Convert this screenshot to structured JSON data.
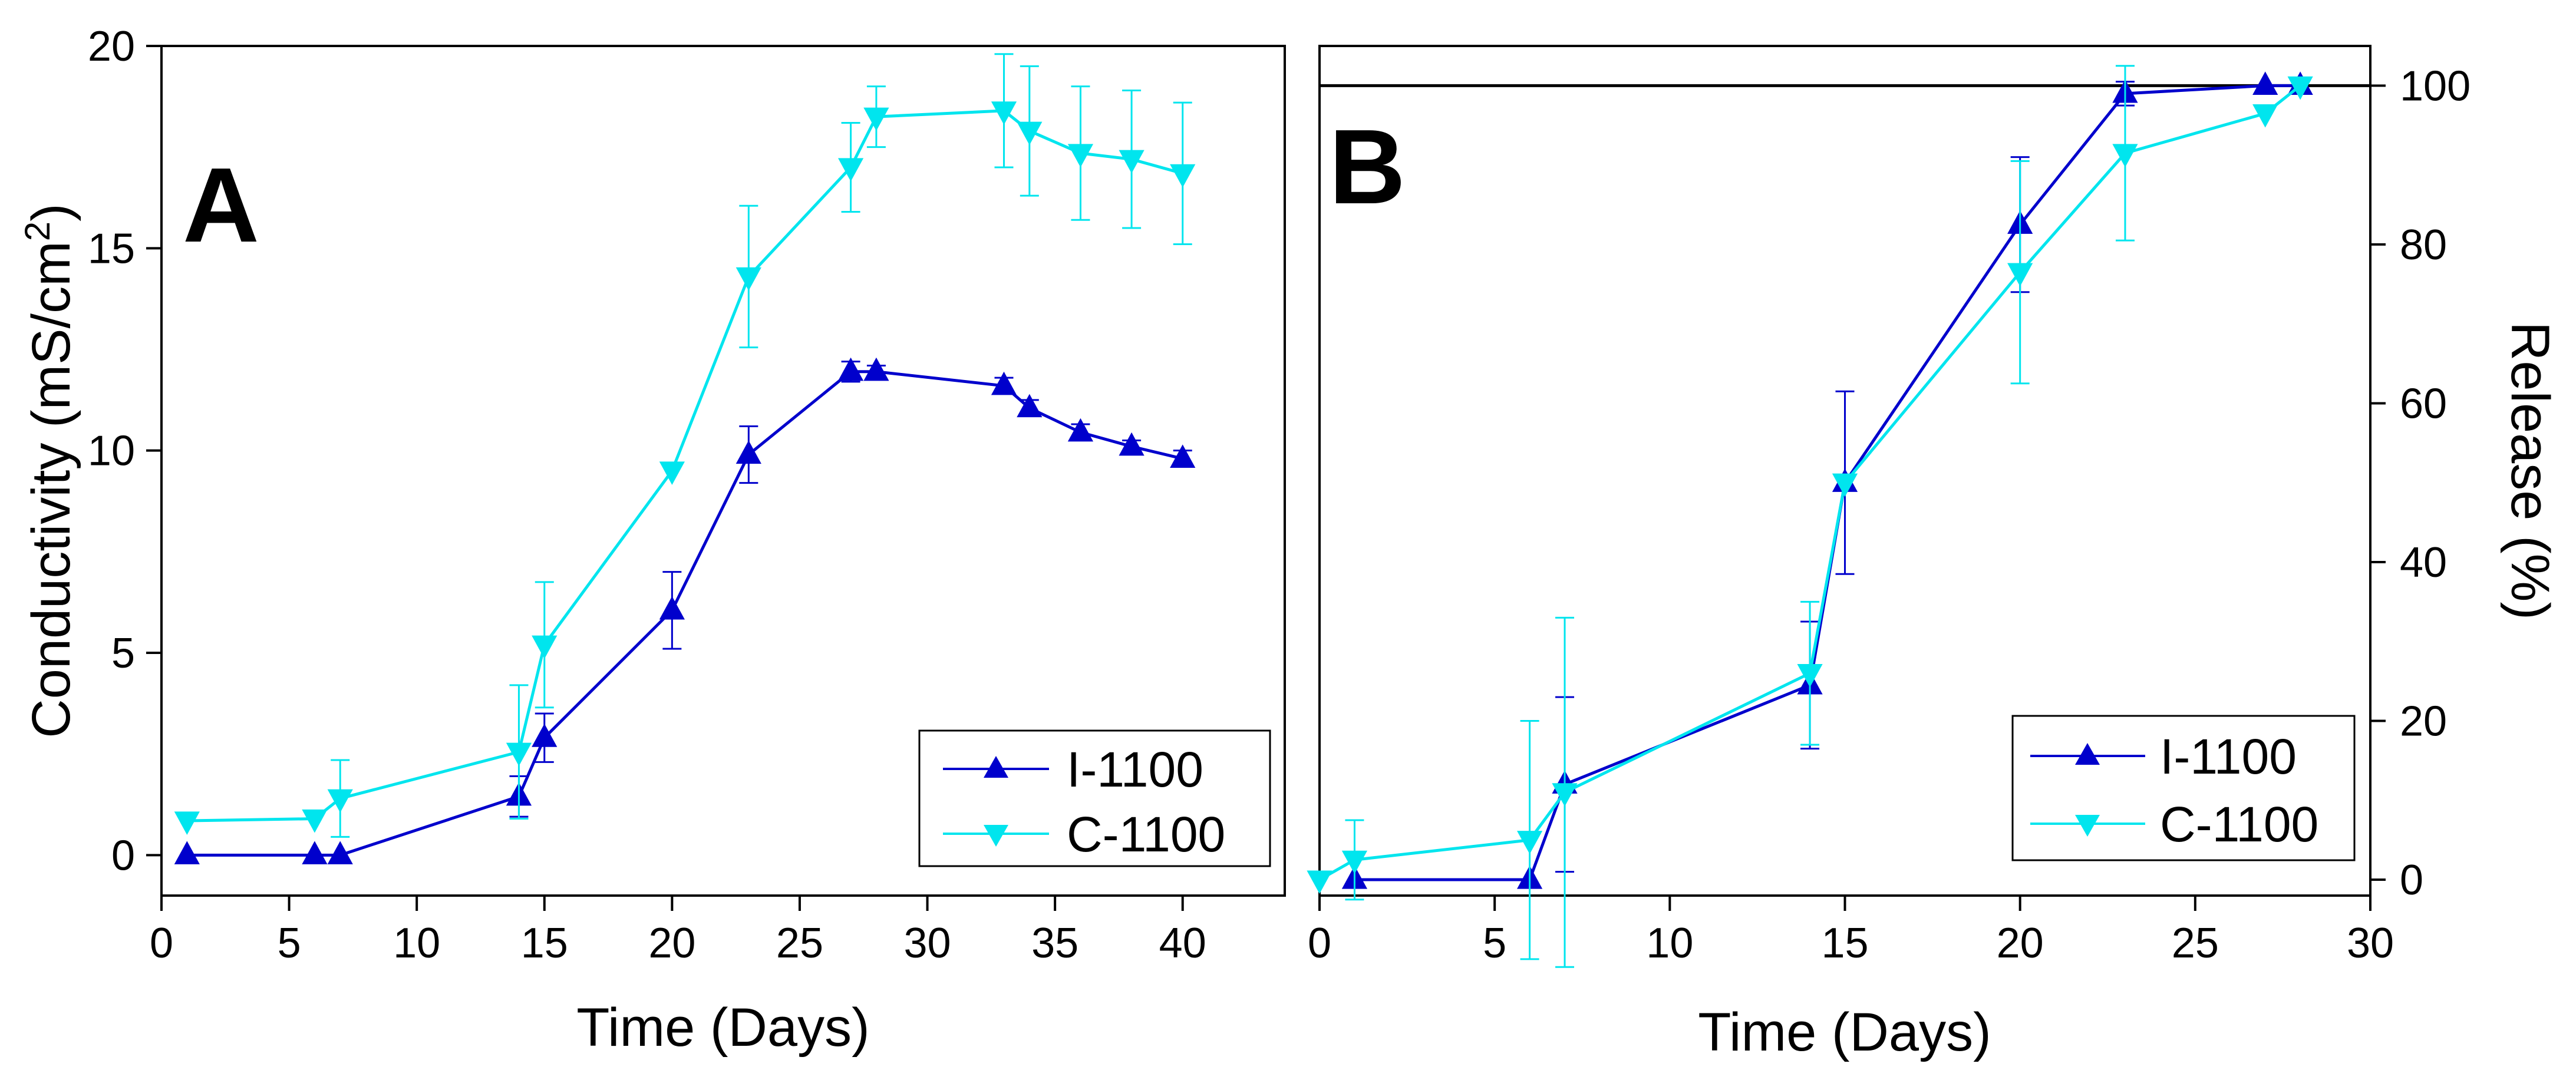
{
  "chart_data": [
    {
      "panel_label": "A",
      "type": "line",
      "xlabel": "Time (Days)",
      "ylabel_main": "Conductivity (mS/cm",
      "ylabel_sup": "2",
      "ylabel_end": ")",
      "xlim": [
        0,
        44
      ],
      "ylim": [
        -1,
        20
      ],
      "xticks": [
        0,
        5,
        10,
        15,
        20,
        25,
        30,
        35,
        40
      ],
      "yticks": [
        0,
        5,
        10,
        15,
        20
      ],
      "legend_position": "bottom-right",
      "series": [
        {
          "name": "I-1100",
          "color": "#0000cc",
          "marker": "triangle-up",
          "x": [
            1,
            6,
            7,
            14,
            15,
            20,
            23,
            27,
            28,
            33,
            34,
            36,
            38,
            40
          ],
          "y": [
            0,
            0,
            0,
            1.45,
            2.9,
            6.05,
            9.9,
            11.95,
            11.95,
            11.6,
            11.05,
            10.45,
            10.1,
            9.8
          ],
          "err": [
            0,
            0,
            0,
            0.5,
            0.6,
            0.95,
            0.7,
            0.25,
            0.15,
            0.2,
            0.2,
            0.2,
            0.15,
            0.2
          ]
        },
        {
          "name": "C-1100",
          "color": "#00e5ee",
          "marker": "triangle-down",
          "x": [
            1,
            6,
            7,
            14,
            15,
            20,
            23,
            27,
            28,
            33,
            34,
            36,
            38,
            40
          ],
          "y": [
            0.85,
            0.9,
            1.4,
            2.55,
            5.2,
            9.5,
            14.3,
            17,
            18.25,
            18.4,
            17.9,
            17.35,
            17.2,
            16.85
          ],
          "err": [
            0,
            0,
            0.95,
            1.65,
            1.55,
            0,
            1.75,
            1.1,
            0.75,
            1.4,
            1.6,
            1.65,
            1.7,
            1.75
          ]
        }
      ]
    },
    {
      "panel_label": "B",
      "type": "line",
      "xlabel": "Time (Days)",
      "ylabel": "Release (%)",
      "xlim": [
        0,
        30
      ],
      "ylim": [
        -2,
        105
      ],
      "xticks": [
        0,
        5,
        10,
        15,
        20,
        25,
        30
      ],
      "yticks": [
        0,
        20,
        40,
        60,
        80,
        100
      ],
      "reference_line": 100,
      "legend_position": "bottom-right",
      "series": [
        {
          "name": "I-1100",
          "color": "#0000cc",
          "marker": "triangle-up",
          "x": [
            1,
            6,
            7,
            14,
            15,
            20,
            23,
            27,
            28
          ],
          "y": [
            0,
            0,
            12,
            24.5,
            50,
            82.5,
            99,
            100,
            100
          ],
          "err": [
            0,
            0,
            11,
            8,
            11.5,
            8.5,
            1.5,
            0,
            0
          ]
        },
        {
          "name": "C-1100",
          "color": "#00e5ee",
          "marker": "triangle-down",
          "x": [
            0,
            1,
            6,
            7,
            14,
            15,
            20,
            23,
            27,
            28
          ],
          "y": [
            0,
            2.5,
            5,
            11,
            26,
            50,
            76.5,
            91.5,
            96.5,
            100
          ],
          "err": [
            0,
            5,
            15,
            22,
            9,
            0,
            14,
            11,
            0,
            0
          ]
        }
      ]
    }
  ]
}
